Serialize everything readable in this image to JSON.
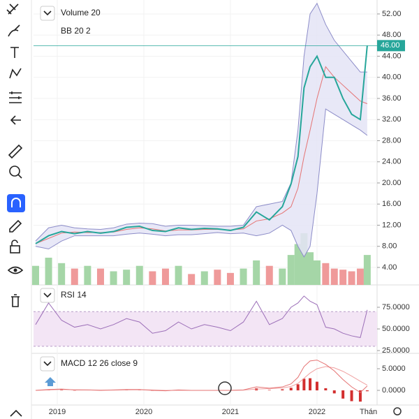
{
  "chart_data": [
    {
      "type": "line",
      "title": "BB 20 2",
      "x": [
        2018.75,
        2018.9,
        2019.05,
        2019.2,
        2019.35,
        2019.5,
        2019.65,
        2019.8,
        2019.95,
        2020.1,
        2020.25,
        2020.4,
        2020.55,
        2020.7,
        2020.85,
        2021.0,
        2021.15,
        2021.3,
        2021.45,
        2021.6,
        2021.7,
        2021.78,
        2021.85,
        2021.92,
        2022.0,
        2022.1,
        2022.2,
        2022.3,
        2022.4,
        2022.5,
        2022.58
      ],
      "series": [
        {
          "color": "#26a69a",
          "values": [
            8.5,
            10.0,
            10.8,
            10.4,
            10.8,
            10.5,
            10.8,
            11.6,
            11.8,
            11.0,
            10.8,
            11.5,
            11.2,
            11.4,
            11.3,
            11.0,
            11.6,
            14.5,
            13.0,
            15.5,
            19.8,
            25,
            38,
            42,
            44,
            40,
            40,
            36,
            33,
            32,
            46
          ]
        },
        {
          "color": "#8c8cc8",
          "values": [
            9,
            11.5,
            12,
            11.5,
            11.3,
            11.2,
            11.5,
            12.2,
            12.4,
            12.3,
            11.8,
            12.0,
            12.0,
            11.9,
            11.8,
            11.8,
            12.0,
            15.5,
            16,
            16.5,
            20,
            30,
            44,
            52,
            54,
            50,
            47,
            45,
            43,
            41,
            41
          ]
        },
        {
          "color": "#e57373",
          "values": [
            8.5,
            9.5,
            10.5,
            10.7,
            10.6,
            10.6,
            10.7,
            11.2,
            11.5,
            11.3,
            10.9,
            11.1,
            11.1,
            11.2,
            11.2,
            11.1,
            11.3,
            12.8,
            13.2,
            14.3,
            15.5,
            19,
            25,
            30,
            36,
            42,
            40,
            38.5,
            37,
            35.5,
            35
          ]
        },
        {
          "color": "#8c8cc8",
          "values": [
            8,
            7.5,
            9,
            10,
            10,
            10,
            10,
            10.3,
            10.5,
            10.3,
            10,
            10.2,
            10.2,
            10.4,
            10.6,
            10.4,
            10.5,
            10,
            10.5,
            12,
            11,
            8,
            6,
            8,
            18,
            34,
            33,
            32,
            31,
            30,
            29
          ]
        }
      ],
      "band_fill": "#e4e4f6",
      "ylim": [
        0.69,
        54.64
      ],
      "yticks": [
        {
          "value": 4,
          "label": "4.00"
        },
        {
          "value": 8,
          "label": "8.00"
        },
        {
          "value": 12,
          "label": "12.00"
        },
        {
          "value": 16,
          "label": "16.00"
        },
        {
          "value": 20,
          "label": "20.00"
        },
        {
          "value": 24,
          "label": "24.00"
        },
        {
          "value": 28,
          "label": "28.00"
        },
        {
          "value": 32,
          "label": "32.00"
        },
        {
          "value": 36,
          "label": "36.00"
        },
        {
          "value": 40,
          "label": "40.00"
        },
        {
          "value": 44,
          "label": "44.00"
        },
        {
          "value": 48,
          "label": "48.00"
        },
        {
          "value": 52,
          "label": "52.00"
        }
      ],
      "last_price": {
        "value": 46,
        "label": "46.00"
      },
      "xlim": [
        2018.726,
        2022.694
      ],
      "xticks": [
        2019,
        2020,
        2021,
        2022
      ],
      "time_unit": "Thán"
    },
    {
      "type": "bar",
      "title": "Volume 20",
      "values": [
        35,
        50,
        40,
        30,
        35,
        30,
        25,
        28,
        35,
        25,
        30,
        35,
        20,
        25,
        28,
        22,
        30,
        45,
        35,
        30,
        55,
        75,
        95,
        60,
        45,
        40,
        30,
        28,
        25,
        30,
        55
      ],
      "colors": [
        "#a5d6a7",
        "#a5d6a7",
        "#a5d6a7",
        "#ef9a9a",
        "#a5d6a7",
        "#ef9a9a",
        "#a5d6a7",
        "#a5d6a7",
        "#a5d6a7",
        "#ef9a9a",
        "#ef9a9a",
        "#a5d6a7",
        "#ef9a9a",
        "#a5d6a7",
        "#ef9a9a",
        "#ef9a9a",
        "#a5d6a7",
        "#a5d6a7",
        "#ef9a9a",
        "#a5d6a7",
        "#a5d6a7",
        "#a5d6a7",
        "#a5d6a7",
        "#a5d6a7",
        "#a5d6a7",
        "#ef9a9a",
        "#ef9a9a",
        "#ef9a9a",
        "#ef9a9a",
        "#ef9a9a",
        "#a5d6a7"
      ],
      "ylim": [
        0,
        100
      ]
    },
    {
      "type": "line",
      "title": "RSI 14",
      "series": [
        {
          "color": "#9c6fb8",
          "values": [
            55,
            80,
            60,
            52,
            55,
            50,
            55,
            62,
            58,
            45,
            48,
            58,
            50,
            55,
            52,
            48,
            58,
            82,
            55,
            62,
            75,
            80,
            88,
            82,
            78,
            52,
            50,
            45,
            42,
            40,
            72
          ]
        }
      ],
      "band": [
        30,
        70
      ],
      "band_fill": "#f3e5f5",
      "ylim": [
        22.6,
        99.2
      ],
      "yticks": [
        {
          "value": 25,
          "label": "25.0000"
        },
        {
          "value": 50,
          "label": "50.0000"
        },
        {
          "value": 75,
          "label": "75.0000"
        }
      ]
    },
    {
      "type": "line",
      "title": "MACD 12 26 close 9",
      "series": [
        {
          "color": "#e57373",
          "values": [
            0,
            0.2,
            0.3,
            0.1,
            0.1,
            0,
            0.1,
            0.2,
            0.2,
            0,
            -0.1,
            0.1,
            0,
            0,
            0,
            0,
            0.1,
            0.8,
            0.5,
            0.8,
            1.5,
            3,
            5.5,
            6.8,
            7,
            6,
            4.5,
            2.5,
            0.8,
            -0.5,
            1.0
          ]
        },
        {
          "color": "#f0a0a0",
          "values": [
            0,
            0.1,
            0.2,
            0.15,
            0.1,
            0.05,
            0.05,
            0.1,
            0.15,
            0.1,
            0,
            0,
            0,
            0,
            0,
            0,
            0.05,
            0.3,
            0.4,
            0.55,
            0.9,
            1.6,
            2.8,
            4.0,
            5.0,
            5.5,
            5.2,
            4.4,
            3.3,
            2.1,
            1.2
          ]
        }
      ],
      "histogram": {
        "color": "#d32f2f",
        "values": [
          0,
          0.1,
          0.1,
          -0.05,
          0,
          -0.05,
          0.05,
          0.1,
          0.05,
          -0.1,
          -0.1,
          0.1,
          0,
          0,
          0,
          0,
          0.05,
          0.5,
          0.1,
          0.25,
          0.6,
          1.4,
          2.7,
          2.8,
          2.0,
          0.5,
          -0.7,
          -1.9,
          -2.5,
          -2.6,
          -0.2
        ]
      },
      "ylim": [
        -3.39,
        8.39
      ],
      "yticks": [
        {
          "value": 0,
          "label": "0.0000"
        },
        {
          "value": 5,
          "label": "5.0000"
        }
      ]
    }
  ]
}
